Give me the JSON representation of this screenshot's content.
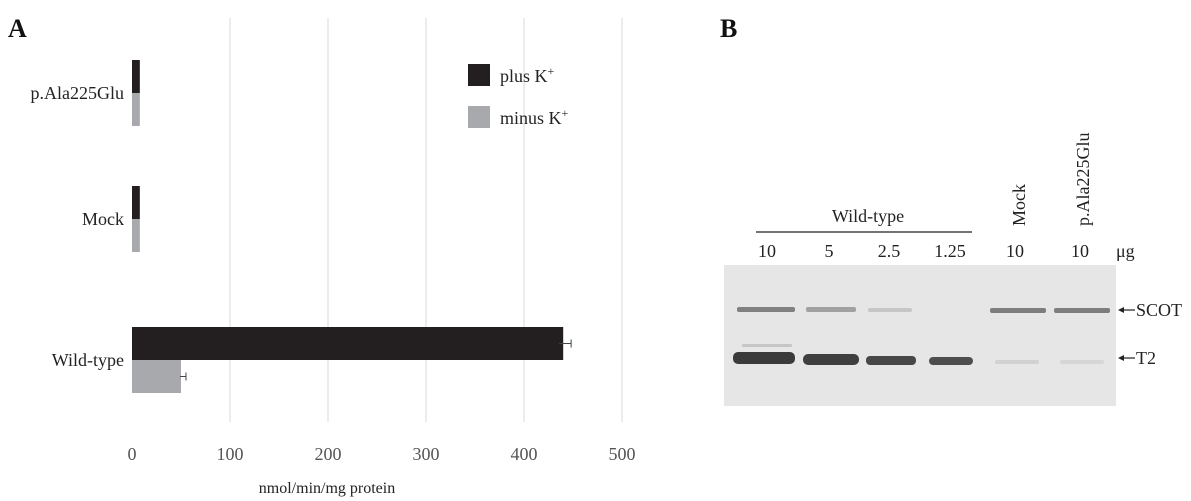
{
  "panel_a": {
    "letter": "A"
  },
  "panel_b": {
    "letter": "B"
  },
  "chart_data": {
    "type": "bar",
    "orientation": "horizontal",
    "categories": [
      "p.Ala225Glu",
      "Mock",
      "Wild-type"
    ],
    "series": [
      {
        "name": "plus K",
        "name_superscript": "+",
        "values": [
          8,
          8,
          440
        ],
        "errors": [
          0,
          0,
          4
        ],
        "color": "#231f20"
      },
      {
        "name": "minus K",
        "name_superscript": "+",
        "values": [
          8,
          8,
          50
        ],
        "errors": [
          0,
          0,
          1
        ],
        "color": "#a7a9ac"
      }
    ],
    "xlabel": "nmol/min/mg protein",
    "xlim": [
      0,
      500
    ],
    "xticks": [
      "0",
      "100",
      "200",
      "300",
      "400",
      "500"
    ],
    "grid": "vertical",
    "legend": "top-right"
  },
  "blot": {
    "group_label": "Wild-type",
    "lane_amounts": [
      "10",
      "5",
      "2.5",
      "1.25",
      "10",
      "10"
    ],
    "unit": "μg",
    "lane_rotated_labels": [
      "Mock",
      "p.Ala225Glu"
    ],
    "band_labels": [
      "SCOT",
      "T2"
    ],
    "background": "#e6e6e6"
  }
}
